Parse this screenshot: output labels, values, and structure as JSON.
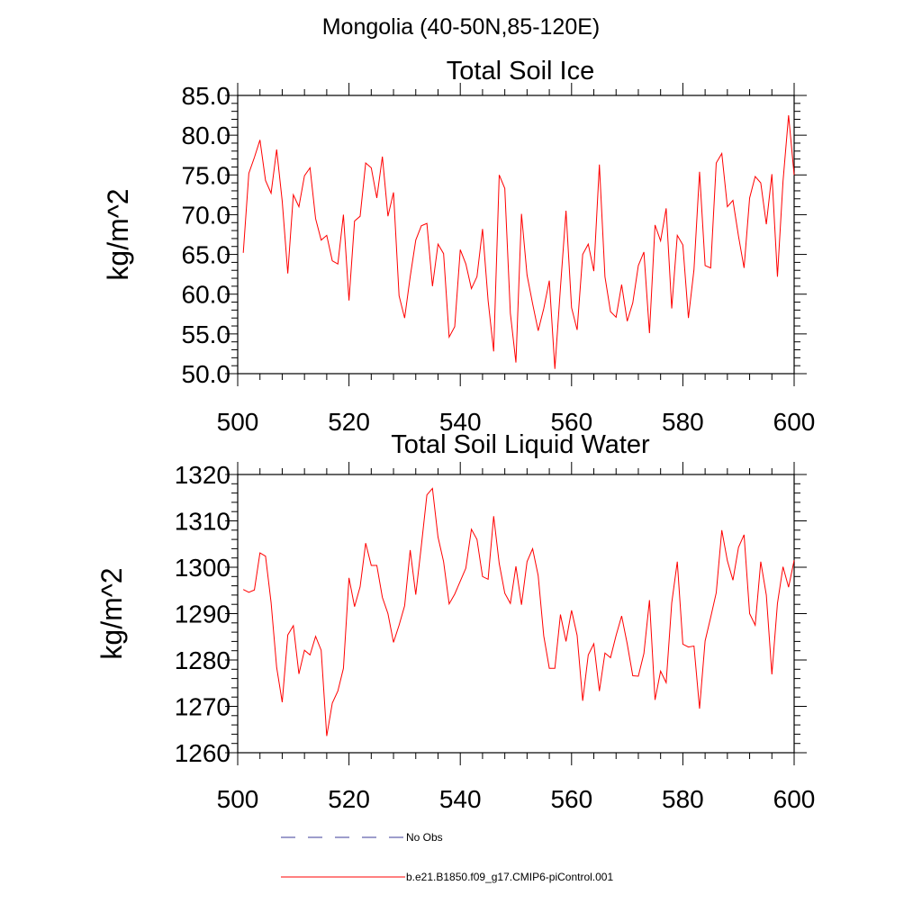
{
  "page": {
    "title": "Mongolia (40-50N,85-120E)"
  },
  "colors": {
    "series": "#ff0000",
    "no_obs": "#3b3b9a",
    "axis": "#000000"
  },
  "legend": [
    {
      "label": "No Obs",
      "style": "dashed",
      "color": "#3b3b9a"
    },
    {
      "label": "b.e21.B1850.f09_g17.CMIP6-piControl.001",
      "style": "solid",
      "color": "#ff0000"
    }
  ],
  "chart_data": [
    {
      "type": "line",
      "title": "Total Soil Ice",
      "xlabel": "",
      "ylabel": "kg/m^2",
      "xlim": [
        500,
        600
      ],
      "ylim": [
        50,
        85
      ],
      "xticks": [
        "500",
        "520",
        "540",
        "560",
        "580",
        "600"
      ],
      "yticks": [
        "50.0",
        "55.0",
        "60.0",
        "65.0",
        "70.0",
        "75.0",
        "80.0",
        "85.0"
      ],
      "grid": false,
      "series": [
        {
          "name": "b.e21.B1850.f09_g17.CMIP6-piControl.001",
          "x_start": 501,
          "values": [
            65.2,
            75.2,
            77.2,
            79.4,
            74.3,
            72.7,
            78.2,
            71.7,
            62.6,
            72.5,
            71.0,
            74.9,
            75.9,
            69.5,
            66.8,
            67.4,
            64.2,
            63.8,
            70.0,
            59.2,
            69.2,
            69.8,
            76.5,
            75.9,
            72.1,
            77.3,
            69.8,
            72.8,
            59.8,
            57.0,
            62.2,
            66.8,
            68.6,
            68.9,
            61.0,
            66.3,
            65.1,
            54.6,
            55.9,
            65.6,
            63.8,
            60.7,
            62.2,
            68.2,
            59.2,
            52.8,
            75.0,
            73.3,
            57.6,
            51.4,
            70.1,
            62.4,
            58.8,
            55.4,
            58.2,
            61.7,
            50.6,
            60.8,
            70.5,
            58.3,
            55.5,
            65.0,
            66.3,
            62.9,
            76.3,
            62.2,
            57.8,
            57.1,
            61.2,
            56.6,
            58.9,
            63.6,
            65.3,
            55.1,
            68.7,
            66.7,
            70.8,
            58.2,
            67.4,
            66.2,
            57.0,
            63.1,
            75.4,
            63.6,
            63.3,
            76.5,
            77.7,
            71.0,
            71.8,
            67.3,
            63.3,
            72.1,
            74.8,
            74.0,
            68.8,
            75.1,
            62.2,
            74.2,
            82.5,
            75.0
          ]
        }
      ]
    },
    {
      "type": "line",
      "title": "Total Soil Liquid Water",
      "xlabel": "",
      "ylabel": "kg/m^2",
      "xlim": [
        500,
        600
      ],
      "ylim": [
        1260,
        1320
      ],
      "xticks": [
        "500",
        "520",
        "540",
        "560",
        "580",
        "600"
      ],
      "yticks": [
        "1260",
        "1270",
        "1280",
        "1290",
        "1300",
        "1310",
        "1320"
      ],
      "grid": false,
      "series": [
        {
          "name": "b.e21.B1850.f09_g17.CMIP6-piControl.001",
          "x_start": 501,
          "values": [
            1295.2,
            1294.6,
            1295.1,
            1303.1,
            1302.4,
            1292.4,
            1278.4,
            1270.9,
            1285.4,
            1287.4,
            1277.0,
            1282.1,
            1281.1,
            1285.1,
            1282.1,
            1263.6,
            1270.7,
            1273.3,
            1278.2,
            1297.7,
            1291.5,
            1295.8,
            1305.2,
            1300.4,
            1300.4,
            1293.5,
            1290.0,
            1283.8,
            1287.5,
            1291.7,
            1303.7,
            1294.1,
            1304.6,
            1315.6,
            1317.0,
            1306.5,
            1301.2,
            1292.1,
            1294.2,
            1297.0,
            1299.8,
            1308.2,
            1306.0,
            1298.0,
            1297.4,
            1311.0,
            1300.8,
            1294.4,
            1292.2,
            1300.2,
            1291.9,
            1301.2,
            1304.0,
            1298.2,
            1285.2,
            1278.2,
            1278.2,
            1289.8,
            1284.0,
            1290.7,
            1285.3,
            1271.2,
            1281.1,
            1283.5,
            1273.3,
            1281.5,
            1280.5,
            1285.3,
            1289.5,
            1283.5,
            1276.6,
            1276.5,
            1281.4,
            1292.9,
            1271.4,
            1277.6,
            1275.1,
            1292.3,
            1301.2,
            1283.4,
            1282.8,
            1283.0,
            1269.5,
            1284.1,
            1289.2,
            1294.5,
            1308.0,
            1301.4,
            1297.2,
            1304.3,
            1307.0,
            1290.0,
            1287.5,
            1301.2,
            1294.0,
            1276.9,
            1292.2,
            1300.1,
            1295.7,
            1301.5
          ]
        }
      ]
    }
  ]
}
